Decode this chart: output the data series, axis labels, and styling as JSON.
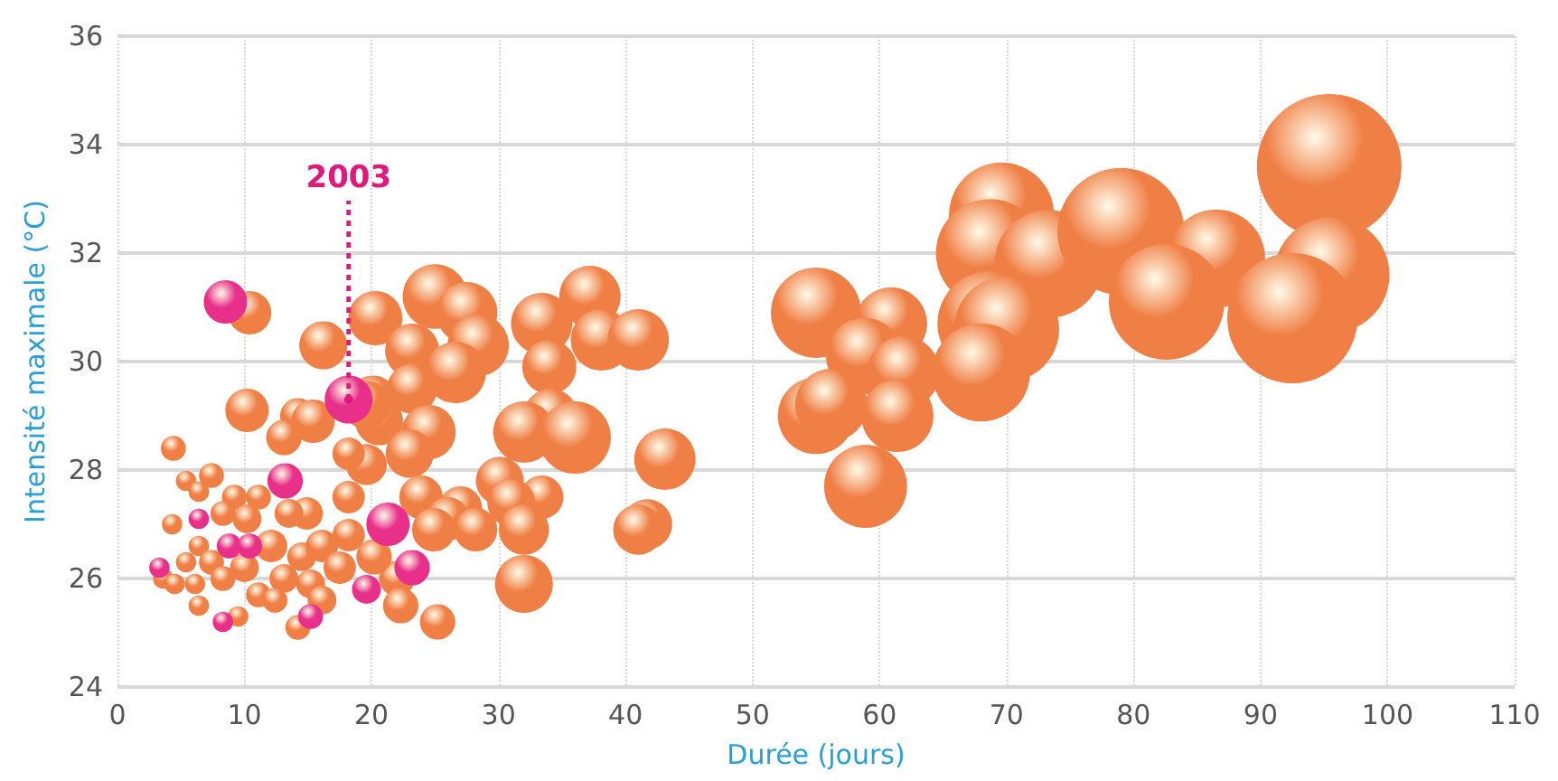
{
  "chart_data": {
    "type": "bubble",
    "xlabel": "Durée (jours)",
    "ylabel": "Intensité maximale (°C)",
    "xlim": [
      0,
      110
    ],
    "xticks": [
      0,
      10,
      20,
      30,
      40,
      50,
      60,
      70,
      80,
      90,
      100,
      110
    ],
    "ylim": [
      24,
      36
    ],
    "yticks": [
      24,
      26,
      28,
      30,
      32,
      34,
      36
    ],
    "grid": true,
    "annotations": [
      {
        "text": "2003",
        "x": 18.2,
        "y": 29.3
      }
    ],
    "series": [
      {
        "color": "#f07f45",
        "x": [
          55,
          60.9,
          58.8,
          61.9,
          55,
          56.2,
          61.4,
          58.9,
          69.6,
          68.7,
          73.3,
          68.7,
          70,
          68,
          79,
          86.5,
          82.6,
          95.4,
          95.6,
          92.5,
          20.3,
          25,
          27.5,
          28.4,
          23.2,
          26.6,
          23.2,
          20.1,
          20.6,
          24.5,
          23,
          19.6,
          33.4,
          37.2,
          38.1,
          41,
          34,
          34.1,
          32,
          36,
          43.1,
          30.1,
          33.4,
          31,
          32,
          23.9,
          27,
          26,
          28.2,
          24.9,
          41.7,
          41,
          32,
          22,
          22.3,
          25.2,
          10.4,
          16.2,
          10.2,
          14.2,
          13.1,
          15.4,
          19.6,
          4.4,
          18.2,
          5.4,
          7.4,
          6.4,
          9.2,
          11.1,
          18.2,
          4.3,
          8.3,
          10.2,
          14.9,
          13.5,
          18.2,
          6.4,
          12.1,
          14.5,
          16.1,
          20.2,
          5.4,
          7.4,
          10,
          13.1,
          15.2,
          17.5,
          3.6,
          4.5,
          6.1,
          8.3,
          11.1,
          12.4,
          16.1,
          6.4,
          9.5,
          14.2
        ],
        "values": [
          30.9,
          30.7,
          30.1,
          29.8,
          29,
          29.2,
          29,
          27.7,
          32.7,
          32,
          31.8,
          30.7,
          30.6,
          29.8,
          32.4,
          31.9,
          31.1,
          33.6,
          31.6,
          30.8,
          30.8,
          31.2,
          30.9,
          30.3,
          30.2,
          29.8,
          29.5,
          29.3,
          28.9,
          28.7,
          28.3,
          28.1,
          30.7,
          31.2,
          30.4,
          30.4,
          29.9,
          29,
          28.7,
          28.6,
          28.2,
          27.8,
          27.5,
          27.4,
          26.9,
          27.5,
          27.3,
          27.1,
          26.9,
          26.9,
          27,
          26.9,
          25.9,
          26,
          25.5,
          25.2,
          30.9,
          30.3,
          29.1,
          29,
          28.6,
          28.9,
          29.2,
          28.4,
          28.3,
          27.8,
          27.9,
          27.6,
          27.5,
          27.5,
          27.5,
          27,
          27.2,
          27.1,
          27.2,
          27.2,
          26.8,
          26.6,
          26.6,
          26.4,
          26.6,
          26.4,
          26.3,
          26.3,
          26.2,
          26,
          25.9,
          26.2,
          26,
          25.9,
          25.9,
          26,
          25.7,
          25.6,
          25.6,
          25.5,
          25.3,
          25.1
        ],
        "sizes": [
          0.39,
          0.25,
          0.28,
          0.25,
          0.28,
          0.25,
          0.25,
          0.33,
          0.53,
          0.56,
          0.56,
          0.53,
          0.53,
          0.46,
          0.77,
          0.46,
          0.64,
          1,
          0.64,
          0.81,
          0.14,
          0.2,
          0.18,
          0.18,
          0.14,
          0.18,
          0.12,
          0.11,
          0.11,
          0.14,
          0.11,
          0.08,
          0.18,
          0.18,
          0.18,
          0.18,
          0.14,
          0.14,
          0.18,
          0.25,
          0.18,
          0.11,
          0.09,
          0.11,
          0.12,
          0.09,
          0.09,
          0.09,
          0.09,
          0.09,
          0.12,
          0.12,
          0.16,
          0.06,
          0.06,
          0.06,
          0.09,
          0.11,
          0.09,
          0.06,
          0.06,
          0.09,
          0.11,
          0.03,
          0.05,
          0.02,
          0.03,
          0.02,
          0.03,
          0.03,
          0.05,
          0.02,
          0.03,
          0.04,
          0.05,
          0.04,
          0.05,
          0.02,
          0.05,
          0.04,
          0.05,
          0.06,
          0.02,
          0.03,
          0.04,
          0.04,
          0.04,
          0.05,
          0.02,
          0.02,
          0.02,
          0.03,
          0.03,
          0.03,
          0.04,
          0.02,
          0.02,
          0.03
        ]
      },
      {
        "color": "#e8308a",
        "x": [
          8.5,
          18.2,
          13.2,
          21.3,
          23.2,
          19.6,
          6.4,
          8.8,
          10.4,
          3.3,
          8.3,
          15.2
        ],
        "values": [
          31.1,
          29.3,
          27.8,
          27,
          26.2,
          25.8,
          27.1,
          26.6,
          26.6,
          26.2,
          25.2,
          25.3
        ],
        "sizes": [
          0.09,
          0.11,
          0.06,
          0.09,
          0.06,
          0.04,
          0.02,
          0.03,
          0.03,
          0.02,
          0.02,
          0.03
        ]
      }
    ]
  }
}
